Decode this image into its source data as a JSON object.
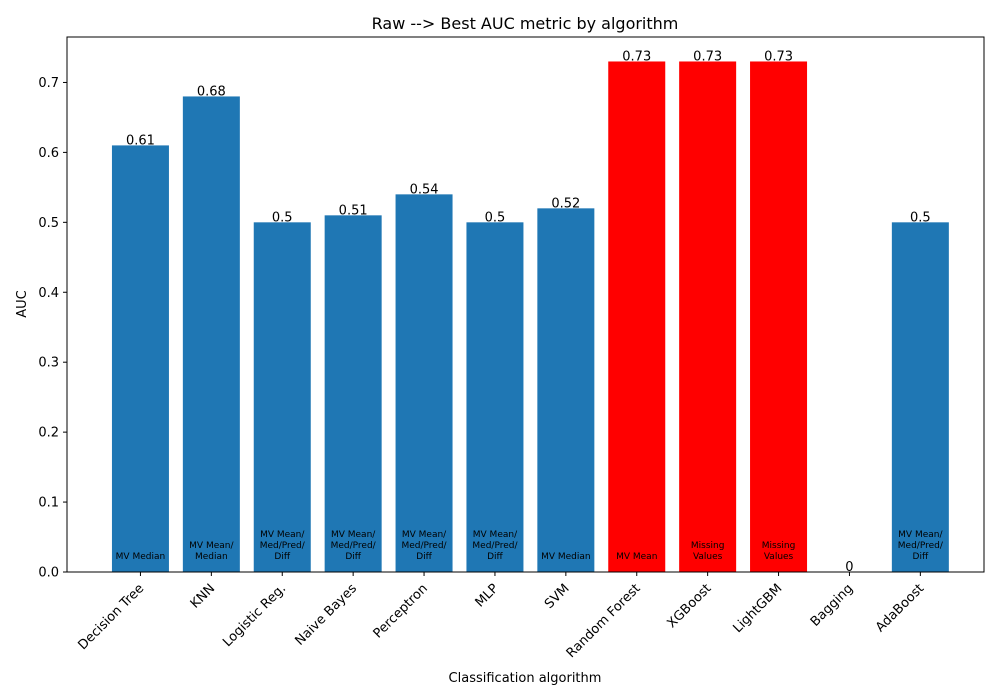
{
  "chart_data": {
    "type": "bar",
    "title": "Raw --> Best AUC metric by algorithm",
    "xlabel": "Classification algorithm",
    "ylabel": "AUC",
    "ylim": [
      0,
      0.765
    ],
    "yticks": [
      0.0,
      0.1,
      0.2,
      0.3,
      0.4,
      0.5,
      0.6,
      0.7
    ],
    "ytick_labels": [
      "0.0",
      "0.1",
      "0.2",
      "0.3",
      "0.4",
      "0.5",
      "0.6",
      "0.7"
    ],
    "grid": false,
    "categories": [
      "Decision Tree",
      "KNN",
      "Logistic Reg.",
      "Naive Bayes",
      "Perceptron",
      "MLP",
      "SVM",
      "Random Forest",
      "XGBoost",
      "LightGBM",
      "Bagging",
      "AdaBoost"
    ],
    "values": [
      0.61,
      0.68,
      0.5,
      0.51,
      0.54,
      0.5,
      0.52,
      0.73,
      0.73,
      0.73,
      0,
      0.5
    ],
    "value_labels": [
      "0.61",
      "0.68",
      "0.5",
      "0.51",
      "0.54",
      "0.5",
      "0.52",
      "0.73",
      "0.73",
      "0.73",
      "0",
      "0.5"
    ],
    "bar_notes": [
      [
        "MV Median"
      ],
      [
        "MV Mean/",
        "Median"
      ],
      [
        "MV Mean/",
        "Med/Pred/",
        "Diff"
      ],
      [
        "MV Mean/",
        "Med/Pred/",
        "Diff"
      ],
      [
        "MV Mean/",
        "Med/Pred/",
        "Diff"
      ],
      [
        "MV Mean/",
        "Med/Pred/",
        "Diff"
      ],
      [
        "MV Median"
      ],
      [
        "MV Mean"
      ],
      [
        "Missing",
        "Values"
      ],
      [
        "Missing",
        "Values"
      ],
      [],
      [
        "MV Mean/",
        "Med/Pred/",
        "Diff"
      ]
    ],
    "highlighted": [
      false,
      false,
      false,
      false,
      false,
      false,
      false,
      true,
      true,
      true,
      false,
      false
    ],
    "colors": {
      "default": "#1f77b4",
      "highlight": "#ff0000"
    }
  }
}
